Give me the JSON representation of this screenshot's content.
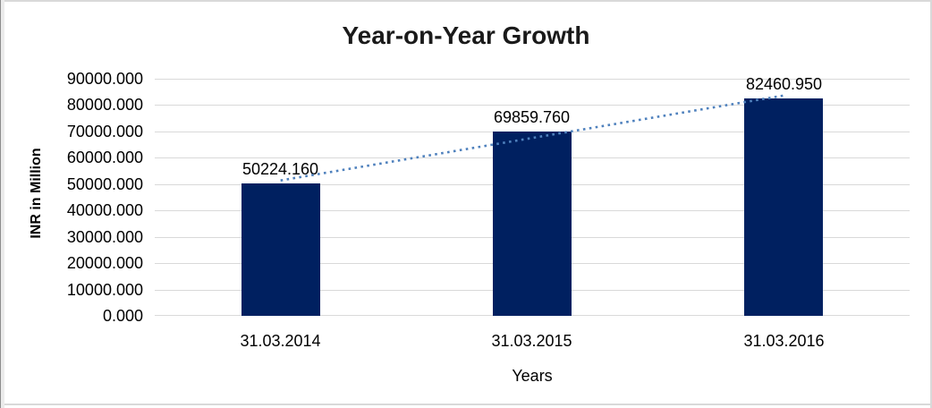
{
  "chart_data": {
    "type": "bar",
    "title": "Year-on-Year Growth",
    "xlabel": "Years",
    "ylabel": "INR in Million",
    "categories": [
      "31.03.2014",
      "31.03.2015",
      "31.03.2016"
    ],
    "values": [
      50224.16,
      69859.76,
      82460.95
    ],
    "data_labels": [
      "50224.160",
      "69859.760",
      "82460.950"
    ],
    "ylim": [
      0,
      90000
    ],
    "ytick_step": 10000,
    "ytick_labels": [
      "0.000",
      "10000.000",
      "20000.000",
      "30000.000",
      "40000.000",
      "50000.000",
      "60000.000",
      "70000.000",
      "80000.000",
      "90000.000"
    ],
    "grid": true,
    "legend": "none",
    "trendline": {
      "type": "linear",
      "style": "dotted"
    }
  },
  "colors": {
    "bar": "#002060",
    "trendline": "#4F81BD",
    "gridline": "#D9D9D9",
    "frame": "#D9D9D9",
    "title_text": "#1A1A1A",
    "axis_text": "#000000",
    "background": "#FFFFFF"
  }
}
